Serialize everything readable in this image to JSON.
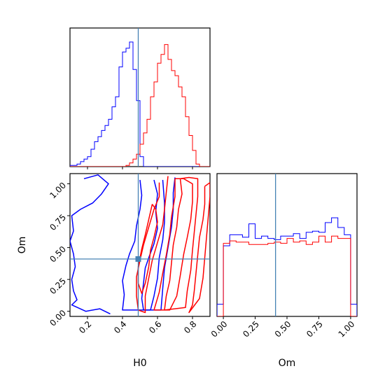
{
  "chart_data": [
    {
      "panel": "h0-marginal",
      "type": "histogram",
      "x_range": [
        0.1,
        0.9
      ],
      "truth": 0.49,
      "series": [
        {
          "color": "#0000ff",
          "bin_edges_start": 0.1,
          "bin_width": 0.02,
          "values": [
            0.01,
            0.01,
            0.02,
            0.04,
            0.06,
            0.08,
            0.14,
            0.2,
            0.24,
            0.29,
            0.33,
            0.38,
            0.48,
            0.56,
            0.8,
            0.92,
            0.95,
            1.0,
            0.78,
            0.53,
            0.08,
            0,
            0,
            0,
            0,
            0,
            0,
            0,
            0,
            0,
            0,
            0,
            0,
            0,
            0,
            0,
            0,
            0,
            0,
            0
          ]
        },
        {
          "color": "#ff0000",
          "bin_edges_start": 0.1,
          "bin_width": 0.02,
          "values": [
            0,
            0,
            0,
            0,
            0,
            0,
            0,
            0,
            0,
            0,
            0,
            0,
            0,
            0,
            0,
            0,
            0.01,
            0.03,
            0.06,
            0.1,
            0.18,
            0.27,
            0.38,
            0.56,
            0.68,
            0.83,
            0.9,
            0.98,
            0.86,
            0.77,
            0.73,
            0.64,
            0.56,
            0.4,
            0.25,
            0.13,
            0.02,
            0,
            0,
            0
          ]
        }
      ]
    },
    {
      "panel": "om-marginal",
      "type": "histogram",
      "xlabel": "Om",
      "x_range": [
        -0.05,
        1.05
      ],
      "x_ticks": [
        "0.00",
        "0.25",
        "0.50",
        "0.75",
        "1.00"
      ],
      "truth": 0.41,
      "series": [
        {
          "color": "#0000ff",
          "bin_edges_start": 0.0,
          "bin_width": 0.05,
          "values": [
            0.58,
            0.67,
            0.67,
            0.65,
            0.76,
            0.64,
            0.66,
            0.64,
            0.63,
            0.66,
            0.66,
            0.68,
            0.64,
            0.69,
            0.7,
            0.69,
            0.77,
            0.81,
            0.73,
            0.67
          ]
        },
        {
          "color": "#ff0000",
          "bin_edges_start": 0.0,
          "bin_width": 0.05,
          "values": [
            0.6,
            0.62,
            0.61,
            0.61,
            0.59,
            0.59,
            0.59,
            0.6,
            0.61,
            0.6,
            0.64,
            0.61,
            0.62,
            0.59,
            0.61,
            0.66,
            0.61,
            0.66,
            0.64,
            0.64
          ]
        }
      ]
    },
    {
      "panel": "joint-contours",
      "type": "contour",
      "xlabel": "H0",
      "ylabel": "Om",
      "x_range": [
        0.1,
        0.9
      ],
      "y_range": [
        -0.04,
        1.08
      ],
      "x_ticks": [
        "0.2",
        "0.4",
        "0.6",
        "0.8"
      ],
      "y_ticks": [
        "0.00",
        "0.25",
        "0.50",
        "0.75",
        "1.00"
      ],
      "truth": {
        "x": 0.49,
        "y": 0.41
      },
      "series": [
        {
          "color": "#0000ff",
          "contours": [
            [
              [
                0.58,
                1.03
              ],
              [
                0.6,
                0.92
              ],
              [
                0.59,
                0.78
              ],
              [
                0.6,
                0.65
              ],
              [
                0.58,
                0.53
              ],
              [
                0.55,
                0.42
              ],
              [
                0.53,
                0.34
              ],
              [
                0.52,
                0.22
              ],
              [
                0.51,
                0.1
              ],
              [
                0.52,
                0.01
              ],
              [
                0.56,
                0.01
              ],
              [
                0.58,
                0.12
              ],
              [
                0.6,
                0.26
              ],
              [
                0.61,
                0.42
              ],
              [
                0.63,
                0.56
              ],
              [
                0.64,
                0.7
              ],
              [
                0.64,
                0.85
              ],
              [
                0.63,
                1.03
              ]
            ],
            [
              [
                0.5,
                1.03
              ],
              [
                0.51,
                0.91
              ],
              [
                0.5,
                0.8
              ],
              [
                0.48,
                0.67
              ],
              [
                0.47,
                0.55
              ],
              [
                0.44,
                0.45
              ],
              [
                0.42,
                0.36
              ],
              [
                0.4,
                0.24
              ],
              [
                0.41,
                0.13
              ],
              [
                0.4,
                0.01
              ],
              [
                0.62,
                0.01
              ],
              [
                0.63,
                0.18
              ],
              [
                0.64,
                0.34
              ],
              [
                0.66,
                0.5
              ],
              [
                0.68,
                0.66
              ],
              [
                0.69,
                0.8
              ],
              [
                0.69,
                0.93
              ],
              [
                0.7,
                1.05
              ]
            ],
            [
              [
                0.18,
                1.04
              ],
              [
                0.26,
                1.07
              ],
              [
                0.32,
                1.0
              ],
              [
                0.28,
                0.92
              ],
              [
                0.23,
                0.85
              ],
              [
                0.16,
                0.8
              ],
              [
                0.11,
                0.75
              ],
              [
                0.12,
                0.63
              ],
              [
                0.1,
                0.55
              ],
              [
                0.12,
                0.45
              ],
              [
                0.13,
                0.35
              ],
              [
                0.11,
                0.25
              ],
              [
                0.12,
                0.16
              ],
              [
                0.14,
                0.09
              ],
              [
                0.11,
                0.05
              ],
              [
                0.19,
                0.0
              ],
              [
                0.27,
                0.02
              ],
              [
                0.33,
                -0.02
              ]
            ]
          ]
        },
        {
          "color": "#ff0000",
          "contours": [
            [
              [
                0.57,
                0.84
              ],
              [
                0.55,
                0.72
              ],
              [
                0.53,
                0.6
              ],
              [
                0.51,
                0.49
              ],
              [
                0.49,
                0.35
              ],
              [
                0.49,
                0.22
              ],
              [
                0.51,
                0.14
              ],
              [
                0.53,
                0.22
              ],
              [
                0.55,
                0.35
              ],
              [
                0.56,
                0.48
              ],
              [
                0.58,
                0.58
              ],
              [
                0.6,
                0.7
              ],
              [
                0.59,
                0.8
              ],
              [
                0.57,
                0.84
              ]
            ],
            [
              [
                0.61,
                1.01
              ],
              [
                0.61,
                0.9
              ],
              [
                0.58,
                0.8
              ],
              [
                0.55,
                0.66
              ],
              [
                0.52,
                0.52
              ],
              [
                0.5,
                0.4
              ],
              [
                0.48,
                0.27
              ],
              [
                0.48,
                0.12
              ],
              [
                0.49,
                0.01
              ],
              [
                0.53,
                -0.01
              ],
              [
                0.53,
                0.12
              ],
              [
                0.55,
                0.26
              ],
              [
                0.57,
                0.4
              ],
              [
                0.6,
                0.54
              ],
              [
                0.63,
                0.68
              ],
              [
                0.64,
                0.8
              ],
              [
                0.65,
                0.93
              ],
              [
                0.66,
                1.06
              ]
            ],
            [
              [
                0.73,
                1.04
              ],
              [
                0.74,
                0.92
              ],
              [
                0.72,
                0.8
              ],
              [
                0.71,
                0.66
              ],
              [
                0.69,
                0.52
              ],
              [
                0.68,
                0.38
              ],
              [
                0.67,
                0.24
              ],
              [
                0.65,
                0.12
              ],
              [
                0.64,
                0.01
              ],
              [
                0.76,
                0.03
              ],
              [
                0.77,
                0.16
              ],
              [
                0.79,
                0.32
              ],
              [
                0.8,
                0.48
              ],
              [
                0.81,
                0.62
              ],
              [
                0.82,
                0.76
              ],
              [
                0.83,
                0.9
              ],
              [
                0.83,
                1.04
              ],
              [
                0.78,
                1.05
              ],
              [
                0.73,
                1.04
              ]
            ],
            [
              [
                0.7,
                1.04
              ],
              [
                0.7,
                0.9
              ],
              [
                0.68,
                0.74
              ],
              [
                0.67,
                0.6
              ],
              [
                0.65,
                0.44
              ],
              [
                0.63,
                0.3
              ],
              [
                0.61,
                0.15
              ],
              [
                0.58,
                0.01
              ],
              [
                0.67,
                0.01
              ],
              [
                0.71,
                0.12
              ],
              [
                0.73,
                0.28
              ],
              [
                0.75,
                0.45
              ],
              [
                0.77,
                0.58
              ],
              [
                0.79,
                0.72
              ],
              [
                0.8,
                0.86
              ],
              [
                0.8,
                1.0
              ],
              [
                0.75,
                1.04
              ],
              [
                0.7,
                1.04
              ]
            ],
            [
              [
                0.87,
                0.98
              ],
              [
                0.87,
                0.84
              ],
              [
                0.86,
                0.72
              ],
              [
                0.84,
                0.58
              ],
              [
                0.83,
                0.44
              ],
              [
                0.82,
                0.3
              ],
              [
                0.81,
                0.16
              ],
              [
                0.8,
                0.05
              ],
              [
                0.78,
                -0.01
              ],
              [
                0.84,
                0.1
              ],
              [
                0.86,
                0.26
              ],
              [
                0.87,
                0.42
              ],
              [
                0.88,
                0.58
              ],
              [
                0.89,
                0.74
              ],
              [
                0.9,
                0.9
              ],
              [
                0.9,
                1.01
              ],
              [
                0.87,
                0.98
              ]
            ]
          ]
        }
      ]
    }
  ]
}
